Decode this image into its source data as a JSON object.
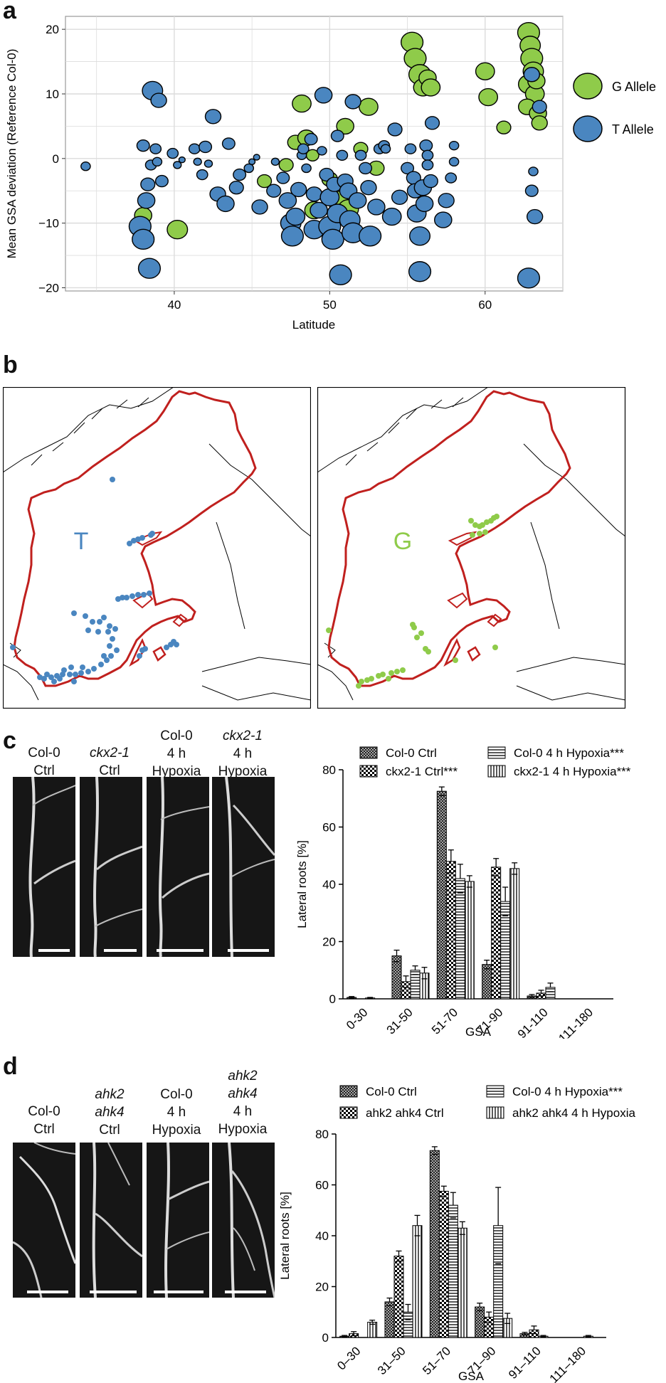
{
  "panels": {
    "a": "a",
    "b": "b",
    "c": "c",
    "d": "d"
  },
  "panel_a": {
    "ylabel": "Mean GSA deviation (Reference Col-0)",
    "xlabel": "Latitude",
    "xticks": [
      "40",
      "50",
      "60"
    ],
    "yticks": [
      "20",
      "10",
      "0",
      "−10",
      "−20"
    ],
    "legend": [
      {
        "label": "G Allele",
        "color": "#8fcb4a"
      },
      {
        "label": "T Allele",
        "color": "#4a86c0"
      }
    ],
    "g_points": [
      [
        38.0,
        -8.8,
        1.1
      ],
      [
        40.2,
        -11.0,
        1.3
      ],
      [
        45.8,
        -3.5,
        0.9
      ],
      [
        47.2,
        -1.0,
        0.9
      ],
      [
        47.8,
        2.5,
        1.0
      ],
      [
        48.2,
        8.5,
        1.2
      ],
      [
        48.5,
        3.2,
        1.1
      ],
      [
        48.9,
        0.5,
        0.8
      ],
      [
        49.0,
        -8.0,
        1.2
      ],
      [
        50.0,
        -3.2,
        1.0
      ],
      [
        50.5,
        -6.5,
        1.3
      ],
      [
        51.0,
        5.0,
        1.1
      ],
      [
        51.2,
        -7.8,
        1.3
      ],
      [
        52.0,
        1.5,
        0.9
      ],
      [
        52.5,
        8.0,
        1.2
      ],
      [
        53.0,
        -1.5,
        1.0
      ],
      [
        55.3,
        18.0,
        1.4
      ],
      [
        55.5,
        15.5,
        1.4
      ],
      [
        55.8,
        13.0,
        1.4
      ],
      [
        56.0,
        11.0,
        1.2
      ],
      [
        56.3,
        12.5,
        1.1
      ],
      [
        56.5,
        11.0,
        1.2
      ],
      [
        60.0,
        13.5,
        1.2
      ],
      [
        60.2,
        9.5,
        1.2
      ],
      [
        61.2,
        4.8,
        0.9
      ],
      [
        62.8,
        19.5,
        1.4
      ],
      [
        62.9,
        17.5,
        1.3
      ],
      [
        63.0,
        15.5,
        1.4
      ],
      [
        63.1,
        13.5,
        1.3
      ],
      [
        62.8,
        11.5,
        1.3
      ],
      [
        63.2,
        10.0,
        1.2
      ],
      [
        62.7,
        8.0,
        1.1
      ],
      [
        63.4,
        7.0,
        1.1
      ],
      [
        63.5,
        5.5,
        1.0
      ],
      [
        63.3,
        12.0,
        1.1
      ]
    ],
    "t_points": [
      [
        34.3,
        -1.2,
        0.6
      ],
      [
        37.8,
        -10.5,
        1.4
      ],
      [
        38.0,
        -12.5,
        1.4
      ],
      [
        38.2,
        -6.5,
        1.1
      ],
      [
        38.3,
        -4.0,
        0.9
      ],
      [
        38.4,
        -17.0,
        1.4
      ],
      [
        38.6,
        10.5,
        1.3
      ],
      [
        39.0,
        9.0,
        1.0
      ],
      [
        38.0,
        2.0,
        0.8
      ],
      [
        38.8,
        1.5,
        0.7
      ],
      [
        38.5,
        -1.0,
        0.7
      ],
      [
        38.9,
        -0.5,
        0.6
      ],
      [
        39.2,
        -3.5,
        0.8
      ],
      [
        39.9,
        0.8,
        0.7
      ],
      [
        40.2,
        -1.0,
        0.5
      ],
      [
        40.5,
        -0.2,
        0.4
      ],
      [
        41.3,
        1.5,
        0.7
      ],
      [
        41.5,
        -0.5,
        0.5
      ],
      [
        41.8,
        -2.5,
        0.7
      ],
      [
        42.0,
        1.8,
        0.8
      ],
      [
        42.2,
        -0.8,
        0.5
      ],
      [
        42.5,
        6.5,
        1.0
      ],
      [
        42.8,
        -5.5,
        1.0
      ],
      [
        43.3,
        -7.0,
        1.1
      ],
      [
        43.5,
        2.3,
        0.8
      ],
      [
        44.0,
        -4.5,
        0.9
      ],
      [
        44.2,
        -2.5,
        0.8
      ],
      [
        44.8,
        -1.5,
        0.6
      ],
      [
        45.0,
        -0.5,
        0.4
      ],
      [
        45.3,
        0.2,
        0.4
      ],
      [
        45.5,
        -7.5,
        1.0
      ],
      [
        46.4,
        -5.0,
        0.9
      ],
      [
        46.5,
        -0.5,
        0.5
      ],
      [
        47.0,
        -3.0,
        0.8
      ],
      [
        47.3,
        -6.5,
        1.1
      ],
      [
        47.5,
        -10.0,
        1.3
      ],
      [
        47.6,
        -12.0,
        1.4
      ],
      [
        47.8,
        -9.0,
        1.2
      ],
      [
        48.0,
        -4.8,
        1.0
      ],
      [
        48.2,
        0.5,
        0.6
      ],
      [
        48.3,
        1.5,
        0.7
      ],
      [
        48.5,
        -1.5,
        0.6
      ],
      [
        48.8,
        3.0,
        0.8
      ],
      [
        49.0,
        -5.5,
        1.0
      ],
      [
        49.0,
        -11.0,
        1.3
      ],
      [
        49.3,
        -8.0,
        1.1
      ],
      [
        49.5,
        1.2,
        0.6
      ],
      [
        49.6,
        9.8,
        1.1
      ],
      [
        49.8,
        -2.5,
        0.9
      ],
      [
        50.0,
        -6.0,
        1.2
      ],
      [
        50.0,
        -10.5,
        1.4
      ],
      [
        50.2,
        -12.5,
        1.4
      ],
      [
        50.3,
        -4.0,
        1.0
      ],
      [
        50.5,
        -8.5,
        1.3
      ],
      [
        50.5,
        3.5,
        0.8
      ],
      [
        50.7,
        -18.0,
        1.4
      ],
      [
        50.8,
        0.5,
        0.7
      ],
      [
        51.0,
        -3.5,
        1.0
      ],
      [
        51.2,
        -5.0,
        1.1
      ],
      [
        51.3,
        -9.5,
        1.3
      ],
      [
        51.5,
        8.8,
        1.0
      ],
      [
        51.5,
        -11.5,
        1.4
      ],
      [
        51.8,
        -6.5,
        1.1
      ],
      [
        52.0,
        0.5,
        0.7
      ],
      [
        52.3,
        -1.5,
        0.8
      ],
      [
        52.5,
        -4.5,
        1.0
      ],
      [
        52.6,
        -12.0,
        1.4
      ],
      [
        53.0,
        -7.5,
        1.1
      ],
      [
        53.2,
        1.5,
        0.7
      ],
      [
        53.5,
        2.0,
        0.7
      ],
      [
        53.6,
        1.5,
        0.6
      ],
      [
        54.0,
        -9.0,
        1.2
      ],
      [
        54.2,
        4.5,
        0.9
      ],
      [
        54.5,
        -6.0,
        1.0
      ],
      [
        55.0,
        -1.5,
        0.8
      ],
      [
        55.2,
        1.5,
        0.7
      ],
      [
        55.4,
        -3.0,
        0.9
      ],
      [
        55.5,
        -5.0,
        1.0
      ],
      [
        55.6,
        -8.5,
        1.2
      ],
      [
        55.8,
        -12.0,
        1.3
      ],
      [
        55.8,
        -17.5,
        1.4
      ],
      [
        56.0,
        -4.5,
        1.1
      ],
      [
        56.1,
        -7.0,
        1.1
      ],
      [
        56.2,
        2.0,
        0.8
      ],
      [
        56.3,
        0.5,
        0.7
      ],
      [
        56.3,
        -1.0,
        0.7
      ],
      [
        56.5,
        -3.5,
        0.9
      ],
      [
        56.6,
        5.5,
        0.9
      ],
      [
        57.3,
        -9.5,
        1.1
      ],
      [
        57.5,
        -6.5,
        1.0
      ],
      [
        57.8,
        -3.0,
        0.7
      ],
      [
        58.0,
        -0.5,
        0.6
      ],
      [
        58.0,
        2.0,
        0.6
      ],
      [
        63.0,
        13.0,
        1.0
      ],
      [
        63.1,
        -2.0,
        0.6
      ],
      [
        63.0,
        -5.0,
        0.8
      ],
      [
        63.2,
        -9.0,
        1.0
      ],
      [
        62.8,
        -18.5,
        1.4
      ],
      [
        63.5,
        8.0,
        0.9
      ]
    ]
  },
  "panel_b": {
    "left_label": "T",
    "right_label": "G",
    "t_color": "#4a86c0",
    "g_color": "#8fcb4a",
    "border_color": "#c0201e"
  },
  "panel_c": {
    "images": [
      {
        "line1": "Col-0",
        "line2": "Ctrl",
        "line3": ""
      },
      {
        "line1": "ckx2-1",
        "line2": "Ctrl",
        "line3": ""
      },
      {
        "line1": "Col-0",
        "line2": "4 h",
        "line3": "Hypoxia"
      },
      {
        "line1": "ckx2-1",
        "line2": "4 h",
        "line3": "Hypoxia"
      }
    ],
    "legend": [
      {
        "name": "Col-0 Ctrl",
        "pattern": "cross"
      },
      {
        "name": "ckx2-1 Ctrl***",
        "pattern": "checker"
      },
      {
        "name": "Col-0 4 h Hypoxia***",
        "pattern": "hlines"
      },
      {
        "name": "ckx2-1 4 h Hypoxia***",
        "pattern": "vlines"
      }
    ]
  },
  "panel_d": {
    "images": [
      {
        "line1": "Col-0",
        "line2": "Ctrl",
        "line3": ""
      },
      {
        "line1": "ahk2",
        "line2": "ahk4",
        "line3": "Ctrl"
      },
      {
        "line1": "Col-0",
        "line2": "4 h",
        "line3": "Hypoxia"
      },
      {
        "line1": "ahk2",
        "line2": "ahk4",
        "line3": "4 h",
        "line4": "Hypoxia"
      }
    ],
    "legend": [
      {
        "name": "Col-0 Ctrl",
        "pattern": "cross"
      },
      {
        "name": "ahk2 ahk4 Ctrl",
        "pattern": "checker"
      },
      {
        "name": "Col-0 4 h Hypoxia***",
        "pattern": "hlines"
      },
      {
        "name": "ahk2 ahk4 4 h Hypoxia",
        "pattern": "vlines"
      }
    ]
  },
  "chart_data": [
    {
      "id": "a",
      "type": "scatter",
      "title": "",
      "xlabel": "Latitude",
      "ylabel": "Mean GSA deviation (Reference Col-0)",
      "xlim": [
        33,
        65
      ],
      "ylim": [
        -20.5,
        22
      ],
      "series": [
        {
          "name": "G Allele",
          "note": "see panel_a.g_points [latitude, deviation, size]"
        },
        {
          "name": "T Allele",
          "note": "see panel_a.t_points [latitude, deviation, size]"
        }
      ]
    },
    {
      "id": "c",
      "type": "bar",
      "title": "",
      "xlabel": "GSA",
      "ylabel": "Lateral roots [%]",
      "ylim": [
        0,
        80
      ],
      "yticks": [
        "0",
        "20",
        "40",
        "60",
        "80"
      ],
      "categories": [
        "0-30",
        "31-50",
        "51-70",
        "71-90",
        "91-110",
        "111-180"
      ],
      "series": [
        {
          "name": "Col-0 Ctrl",
          "values": [
            0.5,
            15,
            72.5,
            12,
            1,
            0
          ],
          "errors": [
            0.3,
            2,
            1.5,
            1.5,
            0.5,
            0
          ]
        },
        {
          "name": "ckx2-1 Ctrl***",
          "values": [
            0,
            6,
            48,
            46,
            2,
            0
          ],
          "errors": [
            0,
            2,
            4,
            3,
            1,
            0
          ]
        },
        {
          "name": "Col-0 4 h Hypoxia***",
          "values": [
            0.3,
            10,
            42,
            34,
            4,
            0
          ],
          "errors": [
            0.2,
            1.5,
            5,
            5,
            1.5,
            0
          ]
        },
        {
          "name": "ckx2-1 4 h Hypoxia***",
          "values": [
            0,
            9,
            41,
            45.5,
            0,
            0
          ],
          "errors": [
            0,
            2,
            2,
            2,
            0,
            0
          ]
        }
      ]
    },
    {
      "id": "d",
      "type": "bar",
      "title": "",
      "xlabel": "GSA",
      "ylabel": "Lateral roots [%]",
      "ylim": [
        0,
        80
      ],
      "yticks": [
        "0",
        "20",
        "40",
        "60",
        "80"
      ],
      "categories": [
        "0–30",
        "31–50",
        "51–70",
        "71–90",
        "91–110",
        "111–180"
      ],
      "series": [
        {
          "name": "Col-0 Ctrl",
          "values": [
            0.5,
            14,
            73.5,
            12,
            1.5,
            0
          ],
          "errors": [
            0.3,
            1.5,
            1.5,
            1.5,
            0.5,
            0
          ]
        },
        {
          "name": "ahk2 ahk4 Ctrl",
          "values": [
            1.5,
            32,
            57.5,
            8,
            3,
            0
          ],
          "errors": [
            0.8,
            2,
            2,
            2,
            1.5,
            0
          ]
        },
        {
          "name": "Col-0 4 h Hypoxia***",
          "values": [
            0,
            10,
            52,
            44,
            0.5,
            0.5
          ],
          "errors": [
            0,
            3,
            5,
            15,
            0.3,
            0.3
          ]
        },
        {
          "name": "ahk2 ahk4 4 h Hypoxia",
          "values": [
            6,
            44,
            43,
            7.5,
            0,
            0
          ],
          "errors": [
            0.8,
            4,
            2.5,
            2,
            0,
            0
          ]
        }
      ]
    }
  ]
}
